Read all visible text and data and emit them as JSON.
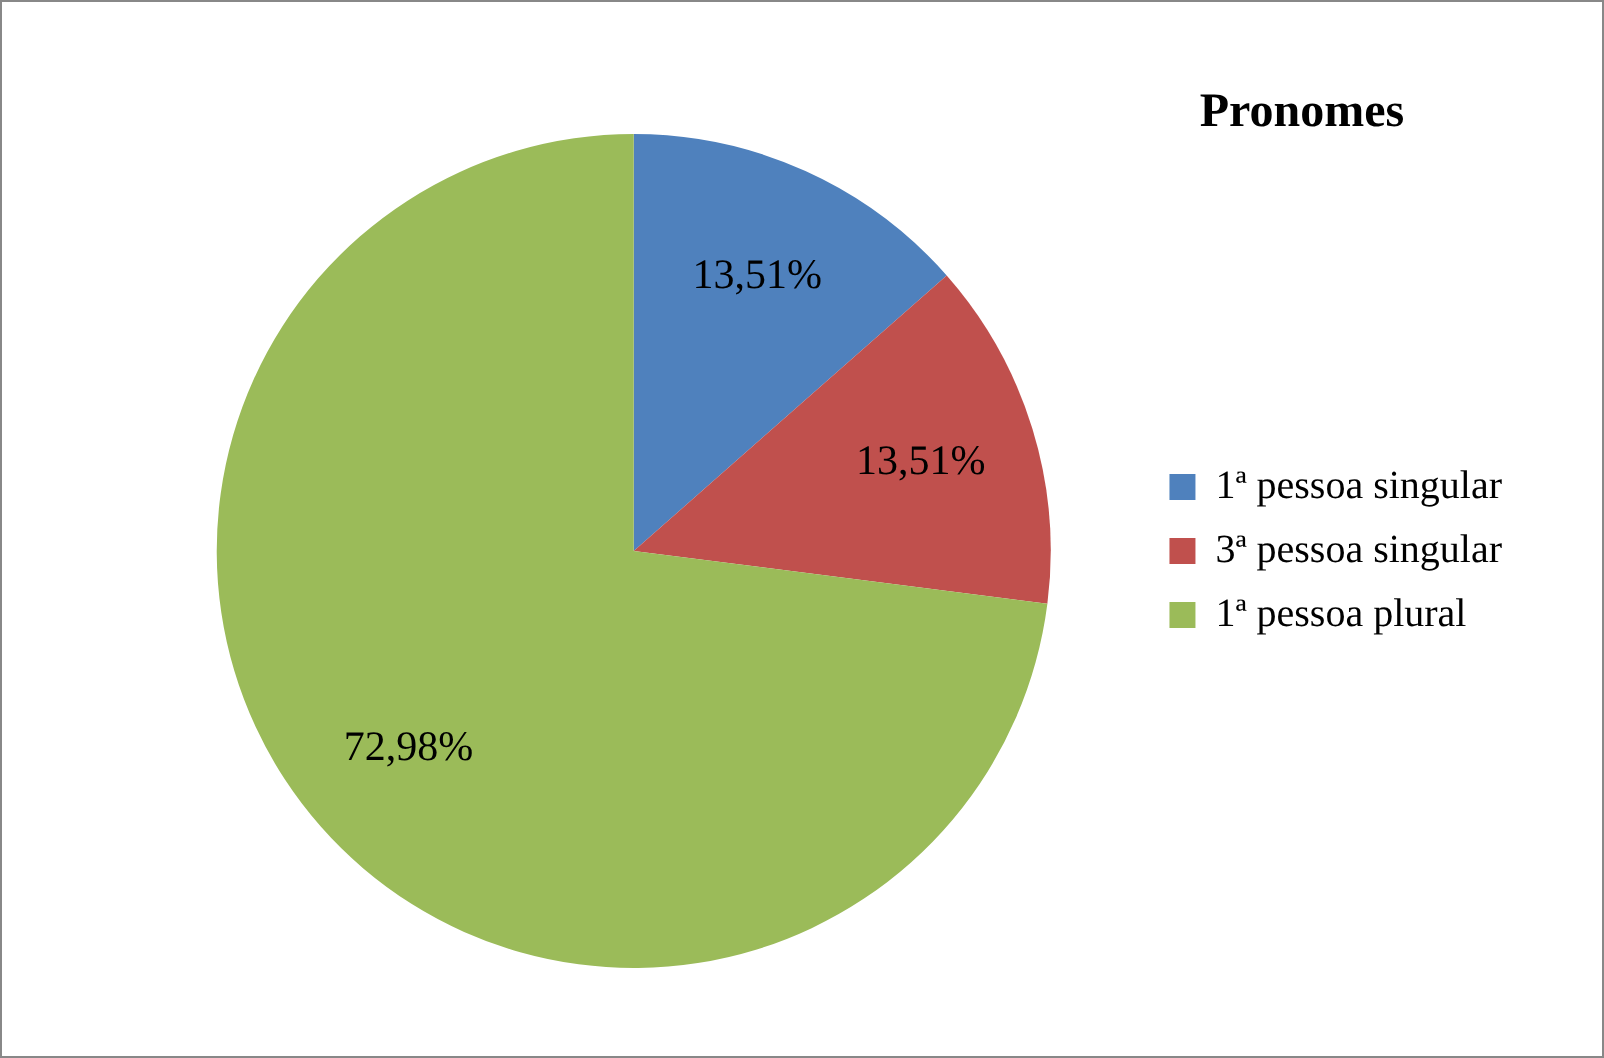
{
  "chart_data": {
    "type": "pie",
    "title": "Pronomes",
    "categories": [
      "1ª pessoa singular",
      "3ª pessoa singular",
      "1ª pessoa plural"
    ],
    "values": [
      13.51,
      13.51,
      72.98
    ],
    "colors": [
      "#4f81bd",
      "#c0504d",
      "#9bbb59"
    ],
    "value_labels": [
      "13,51%",
      "13,51%",
      "72,98%"
    ],
    "legend": "right"
  }
}
